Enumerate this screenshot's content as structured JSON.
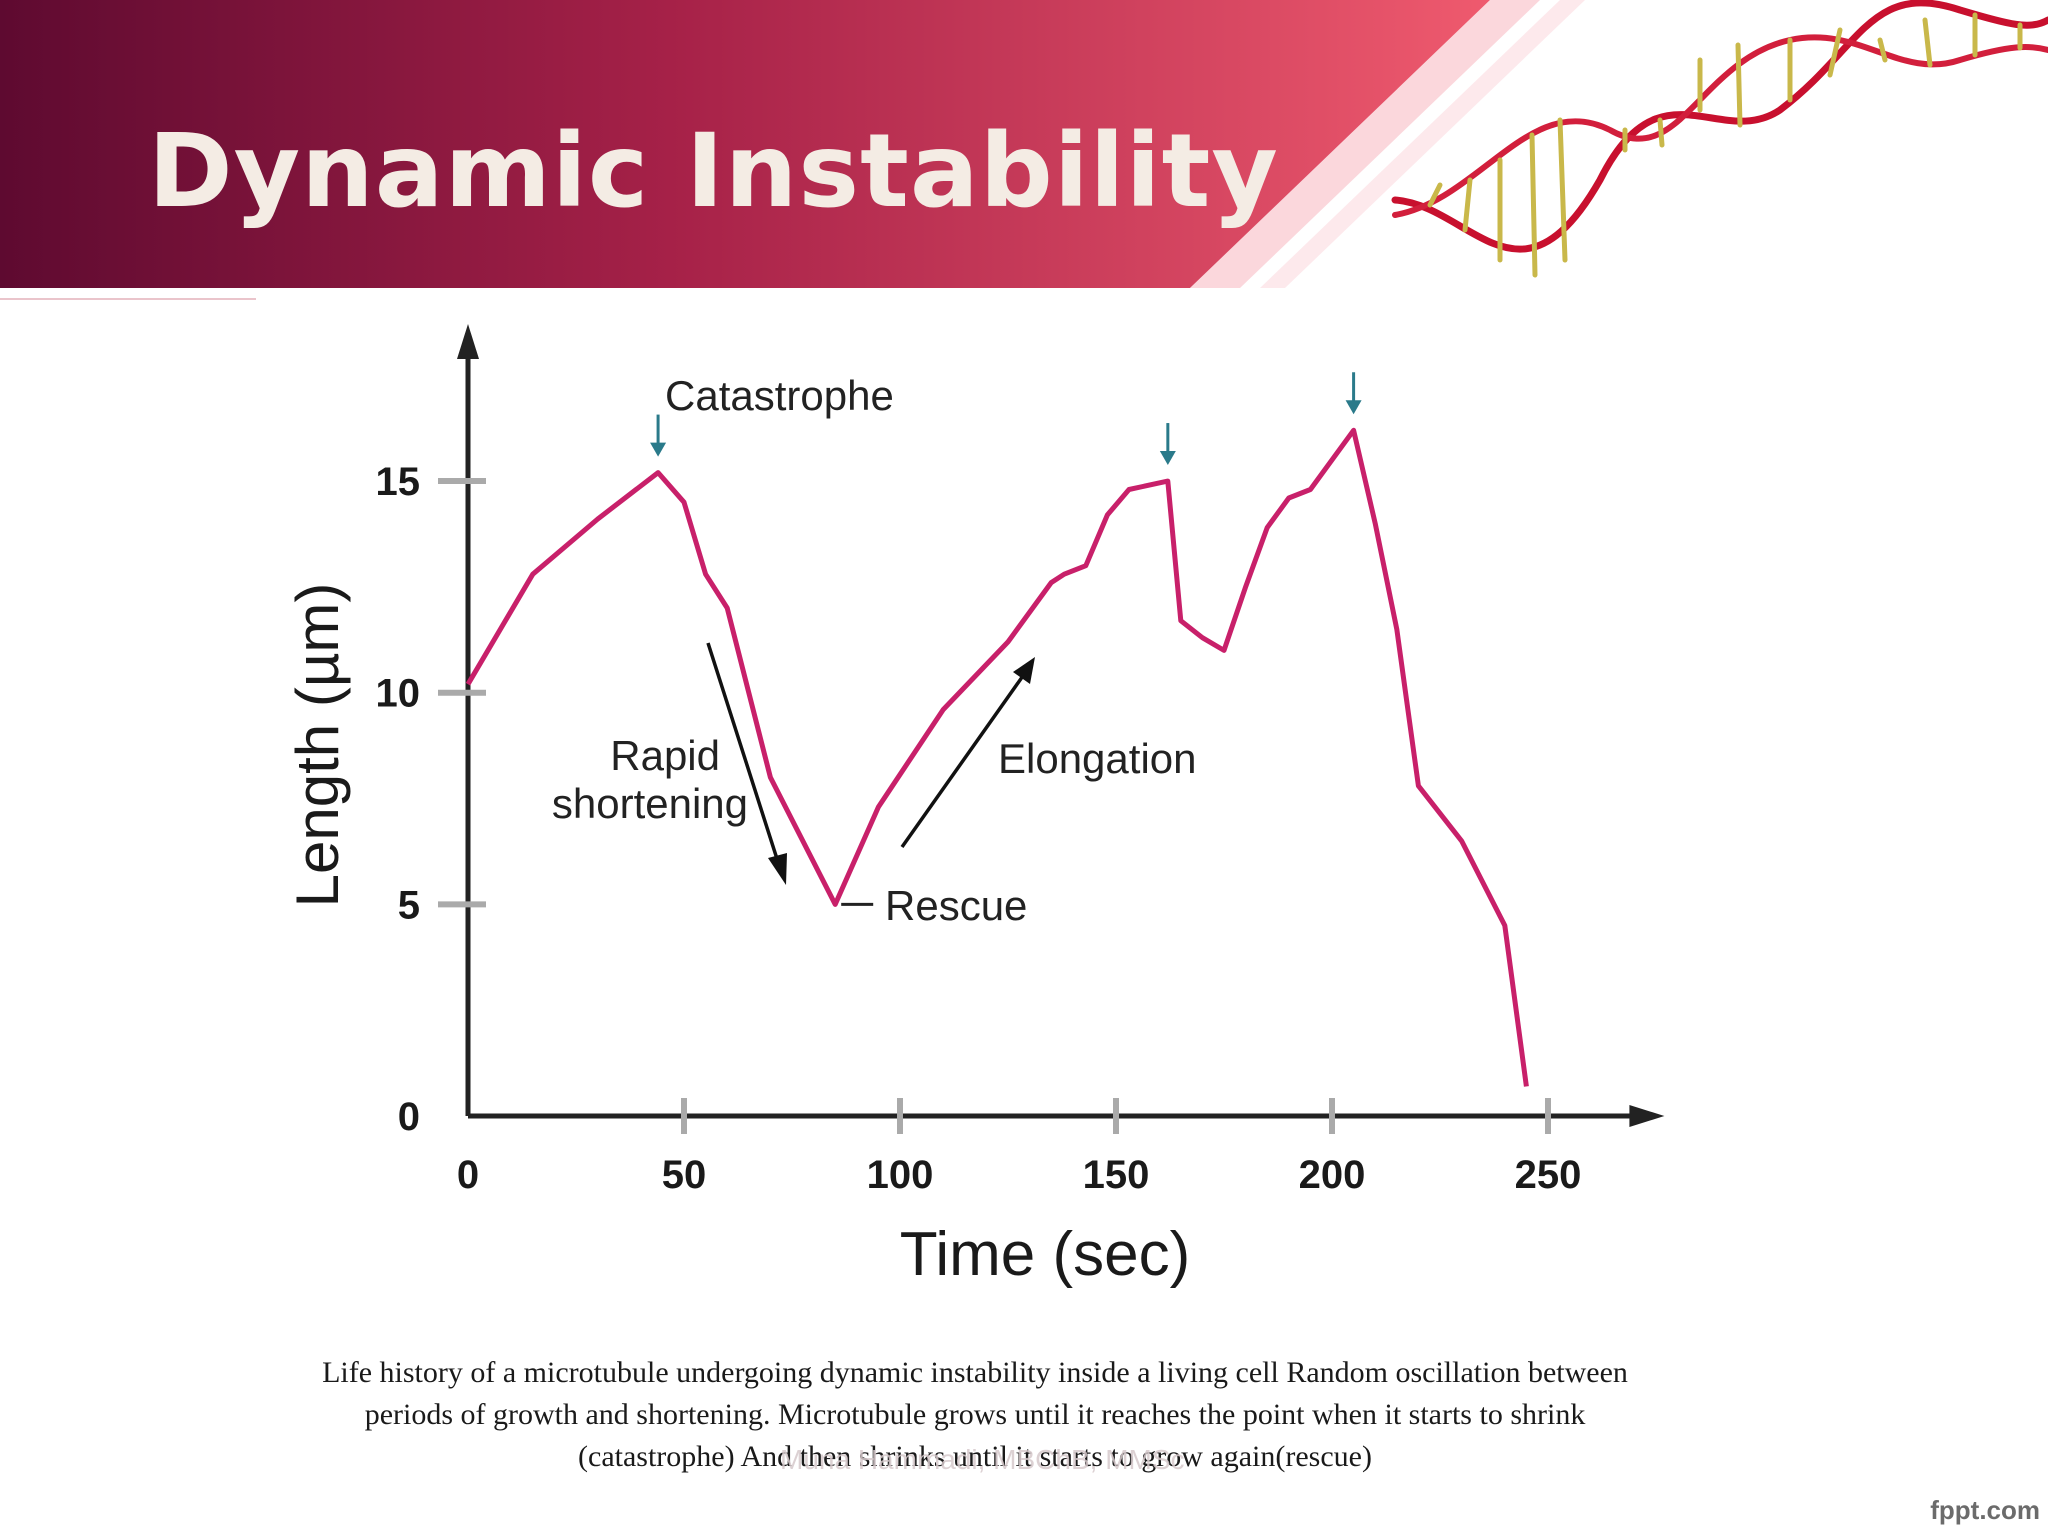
{
  "slide": {
    "title": "Dynamic Instability",
    "caption": "Life history of a microtubule undergoing dynamic instability inside a living cell Random oscillation between periods of growth and shortening. Microtubule grows until it reaches the point when it starts to shrink (catastrophe) And then shrinks until it starts to grow again(rescue)",
    "footer_credit": "Muna Hammadi, MBChB, MMSc",
    "brand": "fppt.com",
    "colors": {
      "banner_dark": "#5e0a30",
      "banner_light": "#ef5a6e",
      "curve": "#c8206a",
      "marker": "#2a7a8a",
      "title_text": "#f4ece4"
    },
    "decoration": "dna-helix"
  },
  "chart_data": {
    "type": "line",
    "xlabel": "Time (sec)",
    "ylabel": "Length (µm)",
    "xlim": [
      0,
      270
    ],
    "ylim": [
      0,
      18
    ],
    "xticks": [
      0,
      50,
      100,
      150,
      200,
      250
    ],
    "yticks": [
      0,
      5,
      10,
      15
    ],
    "grid": false,
    "series": [
      {
        "x": [
          0,
          15,
          30,
          44,
          50,
          55,
          60,
          65,
          70,
          75,
          85,
          95,
          110,
          125,
          135,
          138,
          143,
          148,
          153,
          162,
          165,
          170,
          175,
          180,
          185,
          190,
          195,
          205,
          210,
          215,
          220,
          230,
          240,
          245
        ],
        "values": [
          10.2,
          12.8,
          14.1,
          15.2,
          14.5,
          12.8,
          12,
          10,
          8,
          7,
          5,
          7.3,
          9.6,
          11.2,
          12.6,
          12.8,
          13,
          14.2,
          14.8,
          15,
          11.7,
          11.3,
          11,
          12.5,
          13.9,
          14.6,
          14.8,
          16.2,
          14,
          11.5,
          7.8,
          6.5,
          4.5,
          0.7
        ]
      }
    ],
    "events": [
      {
        "label": "Catastrophe",
        "x": 44
      },
      {
        "label": "",
        "x": 162
      },
      {
        "label": "",
        "x": 205
      }
    ],
    "annotations": [
      {
        "text": "Rapid",
        "line": 1
      },
      {
        "text": "shortening",
        "line": 2
      },
      {
        "text": "Elongation"
      },
      {
        "text": "Rescue",
        "x": 85,
        "y": 5
      }
    ]
  }
}
